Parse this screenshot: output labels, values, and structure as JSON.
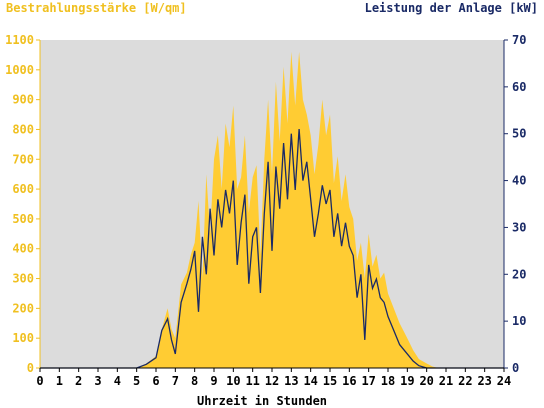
{
  "chart_data": {
    "type": "area",
    "title_left": "Bestrahlungsstärke [W/qm]",
    "title_right": "Leistung der Anlage [kW]",
    "xlabel": "Uhrzeit in Stunden",
    "xlim": [
      0,
      24
    ],
    "ylim_left": [
      0,
      1100
    ],
    "ylim_right": [
      0,
      70
    ],
    "x_ticks": [
      "0",
      "1",
      "2",
      "3",
      "4",
      "5",
      "6",
      "7",
      "8",
      "9",
      "10",
      "11",
      "12",
      "13",
      "14",
      "15",
      "16",
      "17",
      "18",
      "19",
      "20",
      "21",
      "22",
      "23",
      "24"
    ],
    "y_ticks_left": [
      "0",
      "100",
      "200",
      "300",
      "400",
      "500",
      "600",
      "700",
      "800",
      "900",
      "1000",
      "1100"
    ],
    "y_ticks_right": [
      "0",
      "10",
      "20",
      "30",
      "40",
      "50",
      "60",
      "70"
    ],
    "grid": false,
    "colors": {
      "irradiance": "#ffcc33",
      "power": "#1a2a66",
      "plot_bg": "#dcdcdc",
      "left_axis": "#f0c020",
      "right_axis": "#1a2a66"
    },
    "series": [
      {
        "name": "Bestrahlungsstärke [W/qm]",
        "axis": "left",
        "style": "area",
        "x": [
          0,
          5.0,
          5.5,
          6.0,
          6.3,
          6.6,
          6.8,
          7.0,
          7.3,
          7.6,
          7.8,
          8.0,
          8.2,
          8.4,
          8.6,
          8.8,
          9.0,
          9.2,
          9.4,
          9.6,
          9.8,
          10.0,
          10.2,
          10.4,
          10.6,
          10.8,
          11.0,
          11.2,
          11.4,
          11.6,
          11.8,
          12.0,
          12.2,
          12.4,
          12.6,
          12.8,
          13.0,
          13.2,
          13.4,
          13.6,
          13.8,
          14.0,
          14.2,
          14.4,
          14.6,
          14.8,
          15.0,
          15.2,
          15.4,
          15.6,
          15.8,
          16.0,
          16.2,
          16.4,
          16.6,
          16.8,
          17.0,
          17.2,
          17.4,
          17.6,
          17.8,
          18.0,
          18.3,
          18.6,
          19.0,
          19.3,
          19.6,
          20.0,
          20.3,
          20.6,
          24
        ],
        "values": [
          0,
          0,
          15,
          40,
          130,
          200,
          130,
          100,
          280,
          320,
          380,
          420,
          560,
          300,
          650,
          450,
          700,
          780,
          600,
          820,
          740,
          880,
          600,
          640,
          780,
          520,
          640,
          680,
          380,
          700,
          900,
          650,
          960,
          760,
          1010,
          820,
          1060,
          880,
          1060,
          900,
          850,
          780,
          650,
          750,
          900,
          780,
          850,
          620,
          710,
          560,
          650,
          540,
          500,
          360,
          420,
          300,
          450,
          340,
          380,
          300,
          320,
          250,
          200,
          150,
          100,
          60,
          30,
          15,
          5,
          0,
          0
        ]
      },
      {
        "name": "Leistung der Anlage [kW]",
        "axis": "right",
        "style": "line",
        "x": [
          0,
          5.0,
          5.5,
          6.0,
          6.3,
          6.6,
          6.8,
          7.0,
          7.3,
          7.6,
          7.8,
          8.0,
          8.2,
          8.4,
          8.6,
          8.8,
          9.0,
          9.2,
          9.4,
          9.6,
          9.8,
          10.0,
          10.2,
          10.4,
          10.6,
          10.8,
          11.0,
          11.2,
          11.4,
          11.6,
          11.8,
          12.0,
          12.2,
          12.4,
          12.6,
          12.8,
          13.0,
          13.2,
          13.4,
          13.6,
          13.8,
          14.0,
          14.2,
          14.4,
          14.6,
          14.8,
          15.0,
          15.2,
          15.4,
          15.6,
          15.8,
          16.0,
          16.2,
          16.4,
          16.6,
          16.8,
          17.0,
          17.2,
          17.4,
          17.6,
          17.8,
          18.0,
          18.3,
          18.6,
          19.0,
          19.3,
          19.6,
          20.0,
          20.3,
          20.6,
          24
        ],
        "values": [
          0,
          0,
          0.8,
          2.2,
          8,
          10.5,
          6,
          3,
          14,
          18,
          21,
          25,
          12,
          28,
          20,
          34,
          24,
          36,
          30,
          38,
          33,
          40,
          22,
          31,
          37,
          18,
          28,
          30,
          16,
          33,
          44,
          25,
          43,
          34,
          48,
          36,
          50,
          38,
          51,
          40,
          44,
          36,
          28,
          33,
          39,
          35,
          38,
          28,
          33,
          26,
          31,
          26,
          24,
          15,
          20,
          6,
          22,
          17,
          19,
          15,
          14,
          11,
          8,
          5,
          3,
          1.5,
          0.5,
          0,
          0,
          0,
          0
        ]
      }
    ]
  }
}
